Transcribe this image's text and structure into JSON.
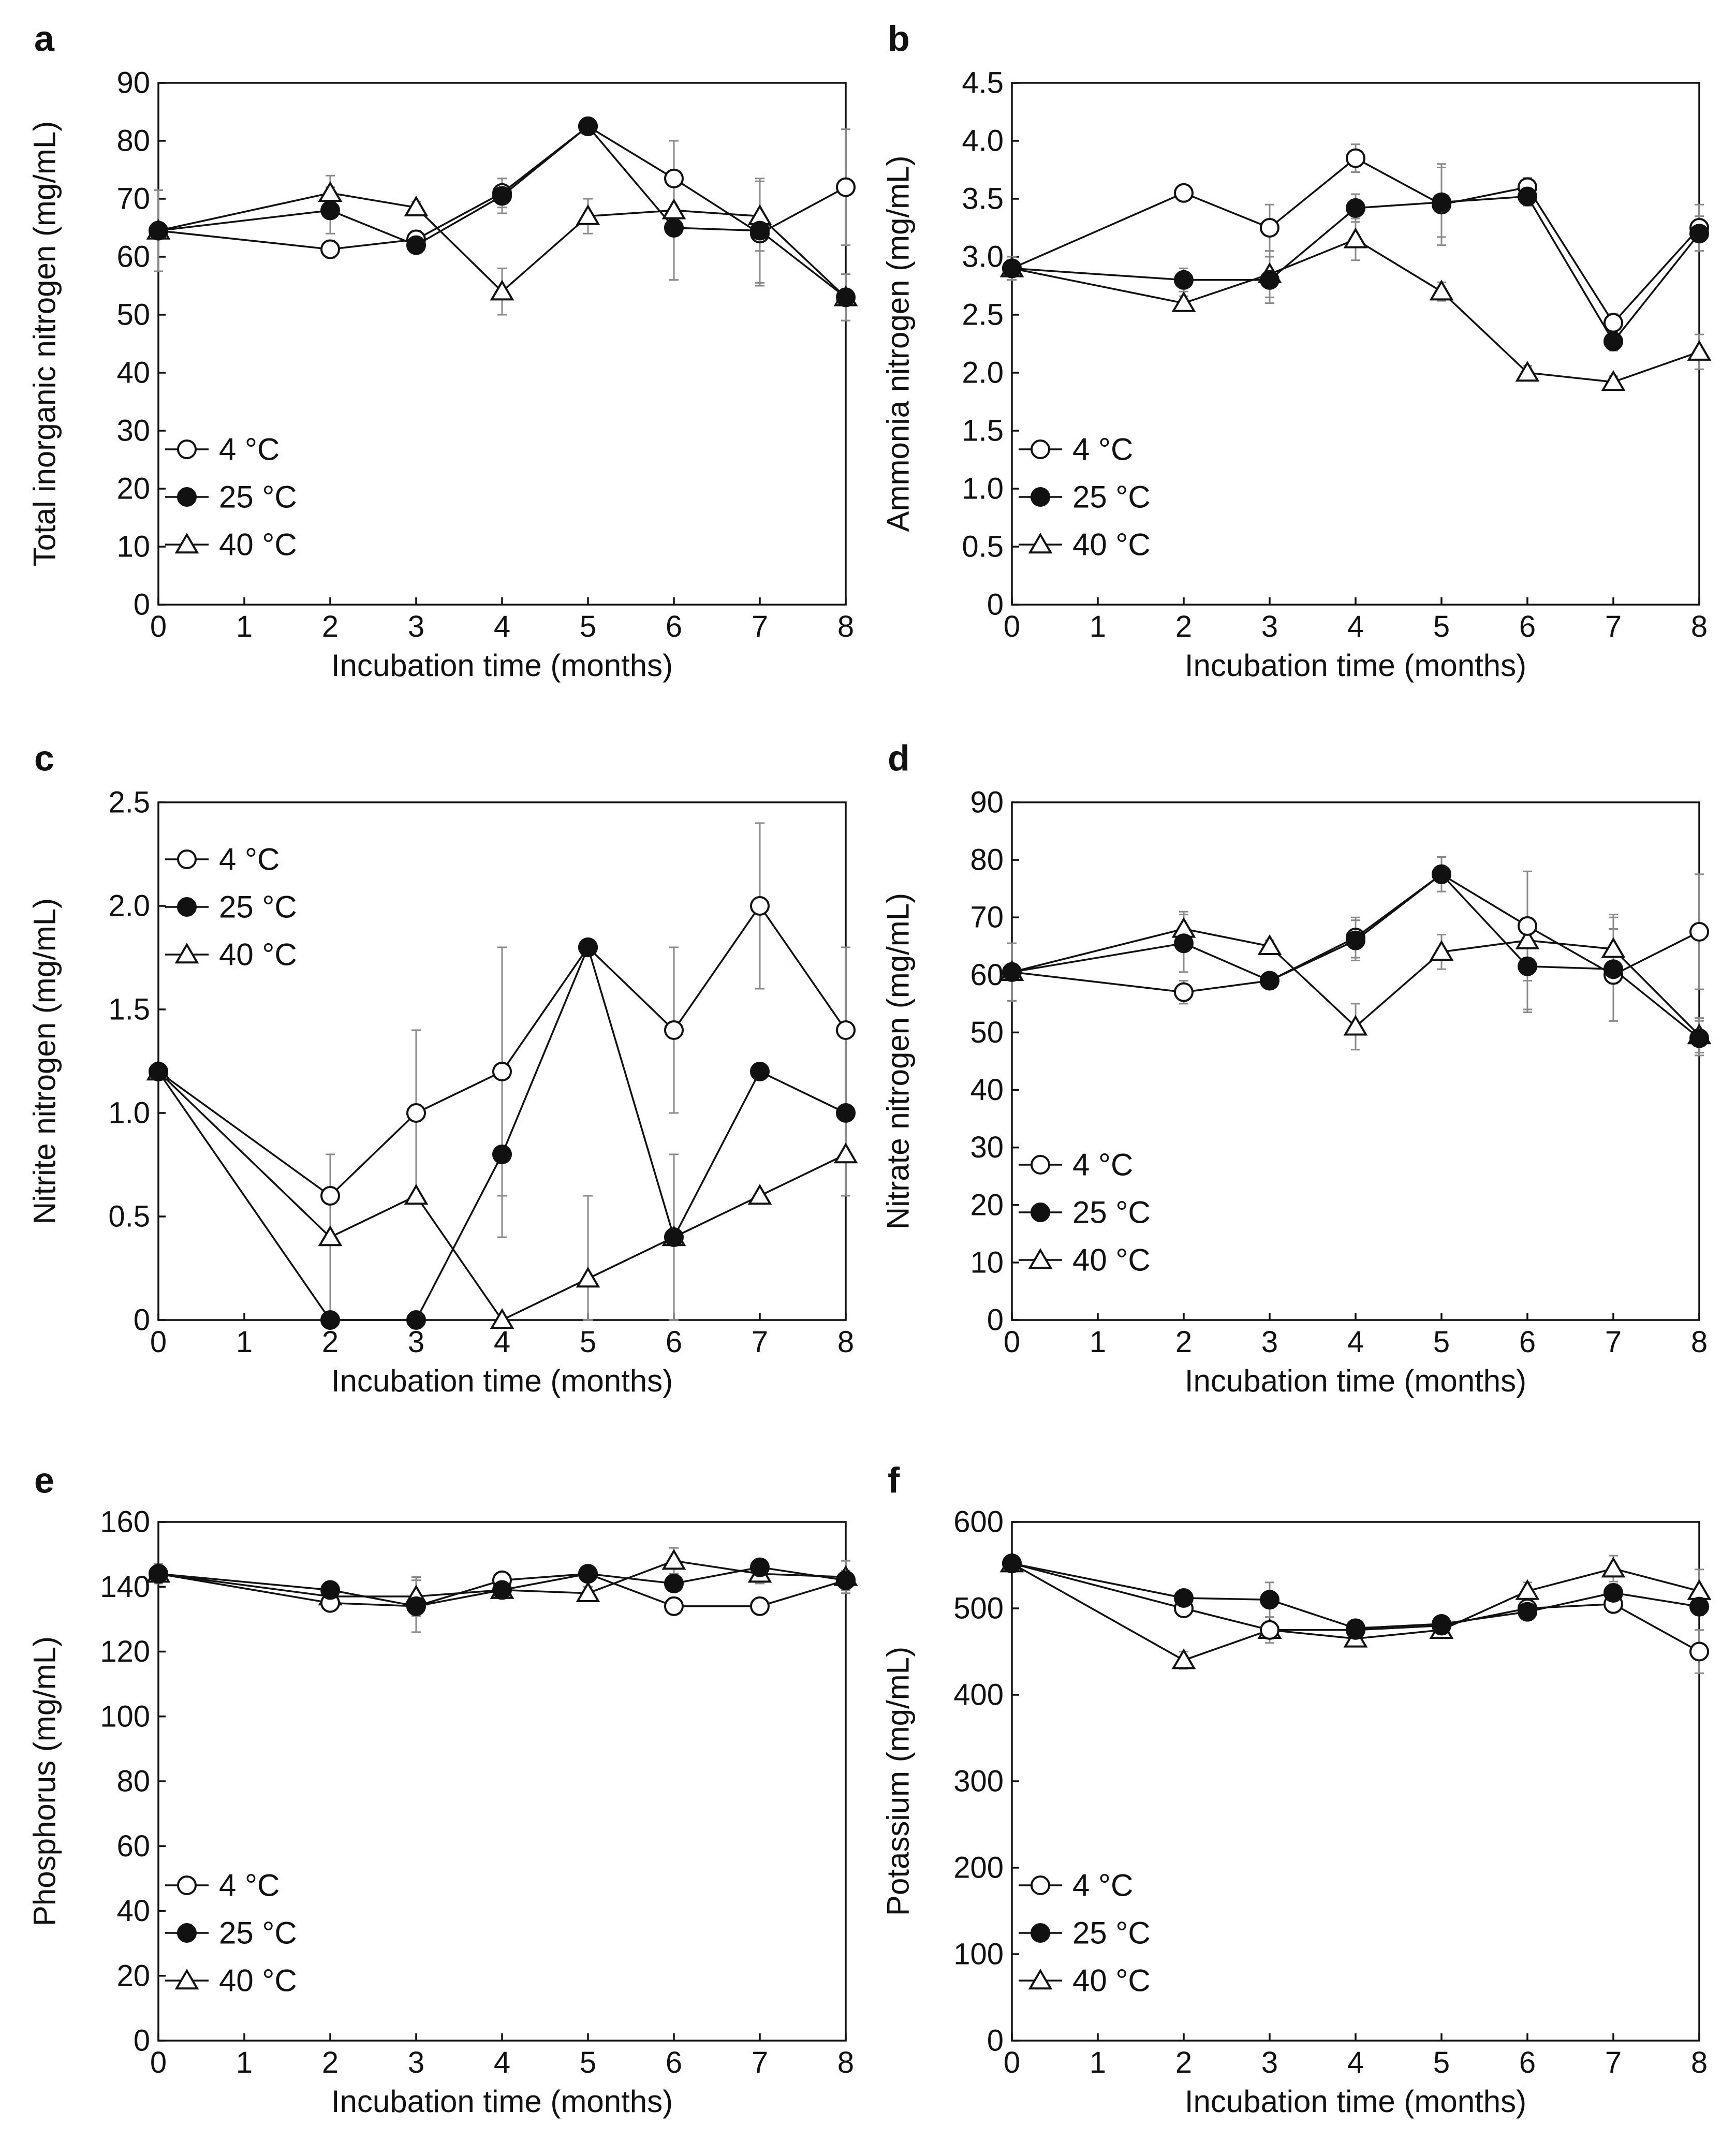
{
  "figure": {
    "x_title": "Incubation time (months)",
    "marker_symbols": {
      "4 °C": "circle-open",
      "25 °C": "circle-filled",
      "40 °C": "triangle-open"
    }
  },
  "chart_data": [
    {
      "id": "a",
      "letter": "a",
      "type": "line",
      "ylabel": "Total inorganic nitrogen (mg/mL)",
      "xlabel": "Incubation time (months)",
      "xlim": [
        0,
        8
      ],
      "ylim": [
        0,
        90
      ],
      "xticks": [
        "0",
        "1",
        "2",
        "3",
        "4",
        "5",
        "6",
        "7",
        "8"
      ],
      "yticks": [
        "0",
        "10",
        "20",
        "30",
        "40",
        "50",
        "60",
        "70",
        "80",
        "90"
      ],
      "legend_position": "bottom-left",
      "x": [
        0,
        2,
        3,
        4,
        5,
        6,
        7,
        8
      ],
      "series": [
        {
          "name": "4 °C",
          "marker": "circle-open",
          "values": [
            64.5,
            61.3,
            63.0,
            71.0,
            82.5,
            73.5,
            64.0,
            72.0
          ],
          "errors": [
            7.0,
            1.5,
            1.5,
            2.5,
            1.0,
            6.5,
            9.0,
            10.0
          ]
        },
        {
          "name": "25 °C",
          "marker": "circle-filled",
          "values": [
            64.5,
            68.0,
            62.0,
            70.5,
            82.5,
            65.0,
            64.5,
            53.0
          ],
          "errors": [
            7.0,
            4.0,
            1.0,
            3.0,
            1.0,
            9.0,
            9.0,
            4.0
          ]
        },
        {
          "name": "40 °C",
          "marker": "triangle-open",
          "values": [
            64.5,
            71.0,
            68.5,
            54.0,
            67.0,
            68.0,
            67.0,
            53.0
          ],
          "errors": [
            7.0,
            3.0,
            1.0,
            4.0,
            3.0,
            12.0,
            6.0,
            4.0
          ]
        }
      ]
    },
    {
      "id": "b",
      "letter": "b",
      "type": "line",
      "ylabel": "Ammonia nitrogen (mg/mL)",
      "xlabel": "Incubation time (months)",
      "xlim": [
        0,
        8
      ],
      "ylim": [
        0,
        4.5
      ],
      "xticks": [
        "0",
        "1",
        "2",
        "3",
        "4",
        "5",
        "6",
        "7",
        "8"
      ],
      "yticks": [
        "0",
        "0.5",
        "1.0",
        "1.5",
        "2.0",
        "2.5",
        "3.0",
        "3.5",
        "4.0",
        "4.5"
      ],
      "legend_position": "bottom-left",
      "x": [
        0,
        2,
        3,
        4,
        5,
        6,
        7,
        8
      ],
      "series": [
        {
          "name": "4 °C",
          "marker": "circle-open",
          "values": [
            2.9,
            3.55,
            3.25,
            3.85,
            3.45,
            3.6,
            2.43,
            3.25
          ],
          "errors": [
            0.1,
            0.05,
            0.2,
            0.12,
            0.35,
            0.08,
            0.08,
            0.2
          ]
        },
        {
          "name": "25 °C",
          "marker": "circle-filled",
          "values": [
            2.9,
            2.8,
            2.8,
            3.42,
            3.47,
            3.52,
            2.27,
            3.2
          ],
          "errors": [
            0.1,
            0.1,
            0.2,
            0.12,
            0.3,
            0.08,
            0.08,
            0.15
          ]
        },
        {
          "name": "40 °C",
          "marker": "triangle-open",
          "values": [
            2.9,
            2.6,
            2.85,
            3.15,
            2.7,
            2.0,
            1.92,
            2.18
          ],
          "errors": [
            0.1,
            0.06,
            0.2,
            0.18,
            0.08,
            0.06,
            0.05,
            0.15
          ]
        }
      ]
    },
    {
      "id": "c",
      "letter": "c",
      "type": "line",
      "ylabel": "Nitrite nitrogen (mg/mL)",
      "xlabel": "Incubation time (months)",
      "xlim": [
        0,
        8
      ],
      "ylim": [
        0,
        2.5
      ],
      "xticks": [
        "0",
        "1",
        "2",
        "3",
        "4",
        "5",
        "6",
        "7",
        "8"
      ],
      "yticks": [
        "0",
        "0.5",
        "1.0",
        "1.5",
        "2.0",
        "2.5"
      ],
      "legend_position": "top-left",
      "x": [
        0,
        2,
        3,
        4,
        5,
        6,
        7,
        8
      ],
      "series": [
        {
          "name": "4 °C",
          "marker": "circle-open",
          "values": [
            1.2,
            0.6,
            1.0,
            1.2,
            1.8,
            1.4,
            2.0,
            1.4
          ],
          "errors": [
            0.0,
            0.2,
            0.4,
            0.6,
            0.0,
            0.4,
            0.4,
            0.4
          ]
        },
        {
          "name": "25 °C",
          "marker": "circle-filled",
          "values": [
            1.2,
            0.0,
            0.0,
            0.8,
            1.8,
            0.4,
            1.2,
            1.0
          ],
          "errors": [
            0.0,
            0.0,
            0.0,
            0.4,
            0.0,
            0.4,
            0.0,
            0.4
          ]
        },
        {
          "name": "40 °C",
          "marker": "triangle-open",
          "values": [
            1.2,
            0.4,
            0.6,
            0.0,
            0.2,
            0.4,
            0.6,
            0.8
          ],
          "errors": [
            0.0,
            0.4,
            0.0,
            0.0,
            0.4,
            0.4,
            0.0,
            0.2
          ]
        }
      ]
    },
    {
      "id": "d",
      "letter": "d",
      "type": "line",
      "ylabel": "Nitrate nitrogen (mg/mL)",
      "xlabel": "Incubation time (months)",
      "xlim": [
        0,
        8
      ],
      "ylim": [
        0,
        90
      ],
      "xticks": [
        "0",
        "1",
        "2",
        "3",
        "4",
        "5",
        "6",
        "7",
        "8"
      ],
      "yticks": [
        "0",
        "10",
        "20",
        "30",
        "40",
        "50",
        "60",
        "70",
        "80",
        "90"
      ],
      "legend_position": "bottom-left",
      "x": [
        0,
        2,
        3,
        4,
        5,
        6,
        7,
        8
      ],
      "series": [
        {
          "name": "4 °C",
          "marker": "circle-open",
          "values": [
            60.5,
            57.0,
            59.0,
            66.5,
            77.5,
            68.5,
            60.0,
            67.5
          ],
          "errors": [
            5.0,
            2.0,
            1.0,
            3.5,
            3.0,
            9.5,
            8.0,
            10.0
          ]
        },
        {
          "name": "25 °C",
          "marker": "circle-filled",
          "values": [
            60.5,
            65.5,
            59.0,
            66.0,
            77.5,
            61.5,
            61.0,
            49.0
          ],
          "errors": [
            5.0,
            5.0,
            1.0,
            3.5,
            3.0,
            8.0,
            9.0,
            3.0
          ]
        },
        {
          "name": "40 °C",
          "marker": "triangle-open",
          "values": [
            60.5,
            68.0,
            65.0,
            51.0,
            64.0,
            66.0,
            64.5,
            49.5
          ],
          "errors": [
            5.0,
            3.0,
            1.0,
            4.0,
            3.0,
            12.0,
            6.0,
            3.0
          ]
        }
      ]
    },
    {
      "id": "e",
      "letter": "e",
      "type": "line",
      "ylabel": "Phosphorus (mg/mL)",
      "xlabel": "Incubation time (months)",
      "xlim": [
        0,
        8
      ],
      "ylim": [
        0,
        160
      ],
      "xticks": [
        "0",
        "1",
        "2",
        "3",
        "4",
        "5",
        "6",
        "7",
        "8"
      ],
      "yticks": [
        "0",
        "20",
        "40",
        "60",
        "80",
        "100",
        "120",
        "140",
        "160"
      ],
      "legend_position": "bottom-left",
      "x": [
        0,
        2,
        3,
        4,
        5,
        6,
        7,
        8
      ],
      "series": [
        {
          "name": "4 °C",
          "marker": "circle-open",
          "values": [
            144,
            135,
            134,
            142,
            144,
            134,
            134,
            142
          ],
          "errors": [
            3,
            2,
            2,
            2,
            2,
            2,
            2,
            3
          ]
        },
        {
          "name": "25 °C",
          "marker": "circle-filled",
          "values": [
            144,
            139,
            134,
            139,
            144,
            141,
            146,
            142
          ],
          "errors": [
            3,
            2,
            8,
            2,
            2,
            2,
            2,
            3
          ]
        },
        {
          "name": "40 °C",
          "marker": "triangle-open",
          "values": [
            144,
            137,
            137,
            139,
            138,
            148,
            144,
            143
          ],
          "errors": [
            3,
            2,
            6,
            2,
            2,
            4,
            3,
            5
          ]
        }
      ]
    },
    {
      "id": "f",
      "letter": "f",
      "type": "line",
      "ylabel": "Potassium (mg/mL)",
      "xlabel": "Incubation time (months)",
      "xlim": [
        0,
        8
      ],
      "ylim": [
        0,
        600
      ],
      "xticks": [
        "0",
        "1",
        "2",
        "3",
        "4",
        "5",
        "6",
        "7",
        "8"
      ],
      "yticks": [
        "0",
        "100",
        "200",
        "300",
        "400",
        "500",
        "600"
      ],
      "legend_position": "bottom-left",
      "x": [
        0,
        2,
        3,
        4,
        5,
        6,
        7,
        8
      ],
      "series": [
        {
          "name": "4 °C",
          "marker": "circle-open",
          "values": [
            552,
            500,
            475,
            475,
            480,
            500,
            505,
            450
          ],
          "errors": [
            5,
            5,
            10,
            8,
            8,
            8,
            8,
            25
          ]
        },
        {
          "name": "25 °C",
          "marker": "circle-filled",
          "values": [
            552,
            512,
            510,
            477,
            482,
            496,
            518,
            502
          ],
          "errors": [
            5,
            8,
            20,
            8,
            8,
            10,
            10,
            10
          ]
        },
        {
          "name": "40 °C",
          "marker": "triangle-open",
          "values": [
            552,
            440,
            475,
            465,
            475,
            520,
            546,
            520
          ],
          "errors": [
            5,
            10,
            15,
            8,
            8,
            10,
            15,
            25
          ]
        }
      ]
    }
  ]
}
